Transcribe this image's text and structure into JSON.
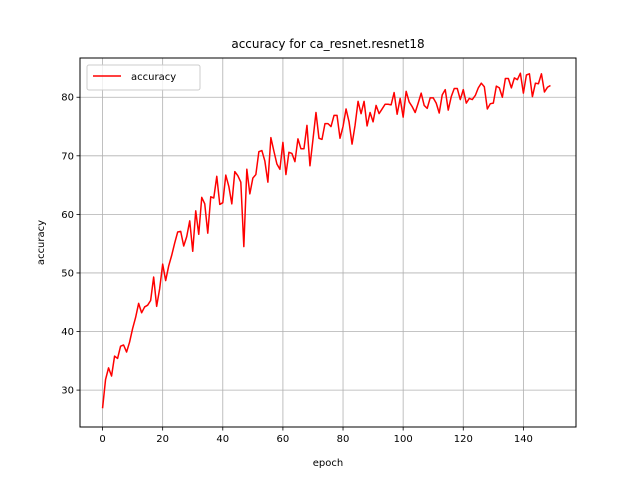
{
  "chart_data": {
    "type": "line",
    "title": "accuracy for ca_resnet.resnet18",
    "xlabel": "epoch",
    "ylabel": "accuracy",
    "xlim": [
      -7.5,
      157.5
    ],
    "ylim": [
      23.7,
      86.7
    ],
    "xticks": [
      0,
      20,
      40,
      60,
      80,
      100,
      120,
      140
    ],
    "yticks": [
      30,
      40,
      50,
      60,
      70,
      80
    ],
    "grid": true,
    "legend_position": "top-left",
    "series": [
      {
        "name": "accuracy",
        "color": "#ff0000",
        "x_start": 0,
        "x_step": 1,
        "values": [
          26.9,
          31.8,
          33.8,
          32.4,
          35.8,
          35.4,
          37.5,
          37.7,
          36.5,
          38.2,
          40.5,
          42.4,
          44.8,
          43.2,
          44.2,
          44.5,
          45.3,
          49.3,
          44.3,
          47.3,
          51.5,
          48.7,
          51.2,
          53.0,
          55.1,
          57.0,
          57.1,
          54.6,
          56.2,
          58.9,
          53.7,
          60.6,
          56.6,
          62.9,
          61.8,
          56.8,
          63.0,
          62.8,
          66.5,
          61.7,
          62.0,
          66.7,
          64.8,
          61.8,
          67.3,
          66.6,
          65.5,
          54.5,
          67.7,
          63.5,
          66.2,
          66.8,
          70.7,
          70.9,
          69.1,
          65.5,
          73.1,
          70.8,
          68.6,
          67.7,
          72.3,
          66.8,
          70.6,
          70.4,
          69.0,
          72.9,
          71.2,
          71.2,
          75.2,
          68.3,
          72.8,
          77.4,
          73.0,
          72.8,
          75.5,
          75.5,
          75.0,
          76.9,
          76.9,
          73.0,
          75.0,
          78.0,
          75.8,
          72.0,
          75.2,
          79.3,
          77.2,
          79.3,
          75.1,
          77.4,
          75.8,
          78.6,
          77.2,
          78.0,
          78.8,
          78.8,
          78.7,
          80.8,
          77.1,
          79.8,
          76.6,
          81.0,
          79.2,
          78.4,
          77.4,
          79.0,
          80.7,
          78.6,
          78.1,
          79.9,
          79.9,
          79.0,
          77.3,
          80.4,
          81.3,
          77.8,
          80.1,
          81.5,
          81.5,
          79.6,
          81.3,
          79.0,
          79.8,
          79.6,
          80.3,
          81.6,
          82.4,
          81.8,
          78.0,
          78.9,
          79.0,
          81.9,
          81.6,
          80.0,
          83.2,
          83.2,
          81.6,
          83.3,
          83.0,
          84.1,
          80.7,
          83.8,
          84.0,
          80.1,
          82.4,
          82.3,
          84.0,
          80.9,
          81.7,
          82.0
        ]
      }
    ]
  }
}
